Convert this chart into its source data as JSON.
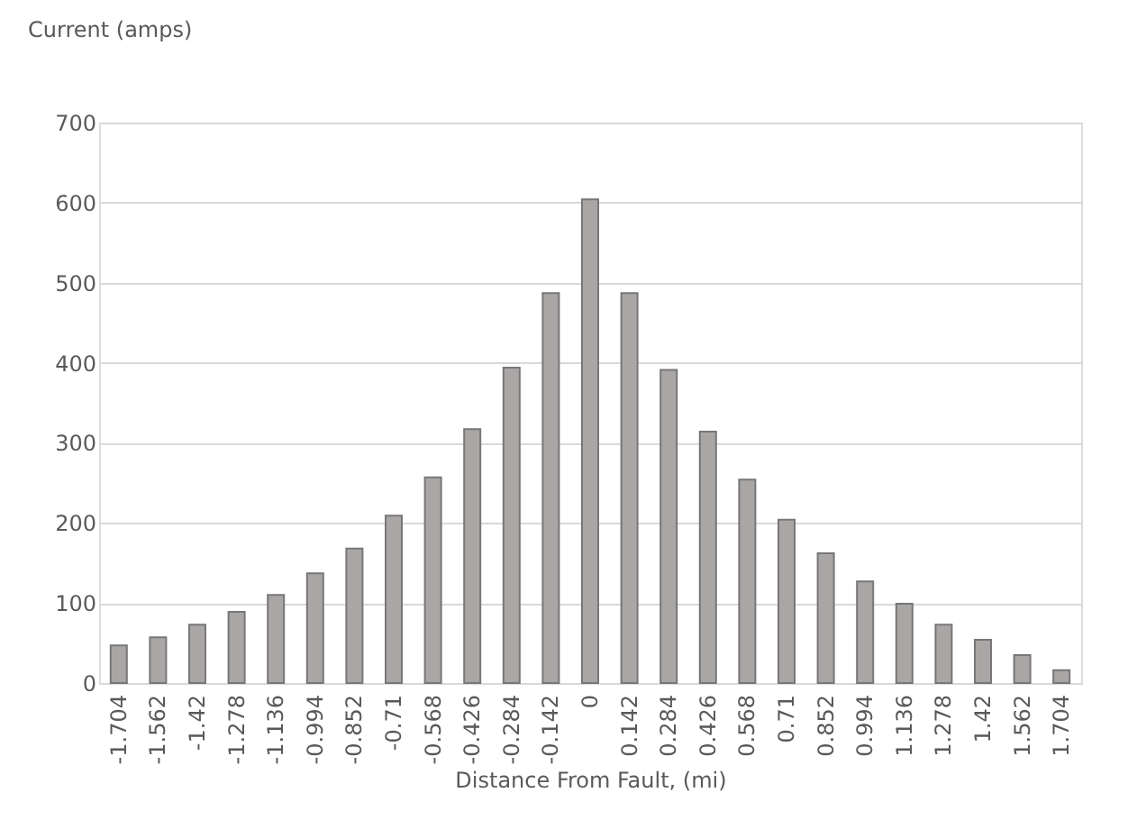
{
  "chart_data": {
    "type": "bar",
    "ylabel": "Current (amps)",
    "xlabel": "Distance From Fault, (mi)",
    "categories": [
      "-1.704",
      "-1.562",
      "-1.42",
      "-1.278",
      "-1.136",
      "-0.994",
      "-0.852",
      "-0.71",
      "-0.568",
      "-0.426",
      "-0.284",
      "-0.142",
      "0",
      "0.142",
      "0.284",
      "0.426",
      "0.568",
      "0.71",
      "0.852",
      "0.994",
      "1.136",
      "1.278",
      "1.42",
      "1.562",
      "1.704"
    ],
    "values": [
      47,
      57,
      73,
      89,
      110,
      137,
      168,
      209,
      257,
      317,
      394,
      487,
      604,
      487,
      391,
      314,
      254,
      204,
      162,
      127,
      99,
      73,
      54,
      35,
      16
    ],
    "color": "#aaa6a6",
    "ylim": [
      0,
      700
    ],
    "yticks": [
      0,
      100,
      200,
      300,
      400,
      500,
      600,
      700
    ],
    "grid": "y"
  }
}
